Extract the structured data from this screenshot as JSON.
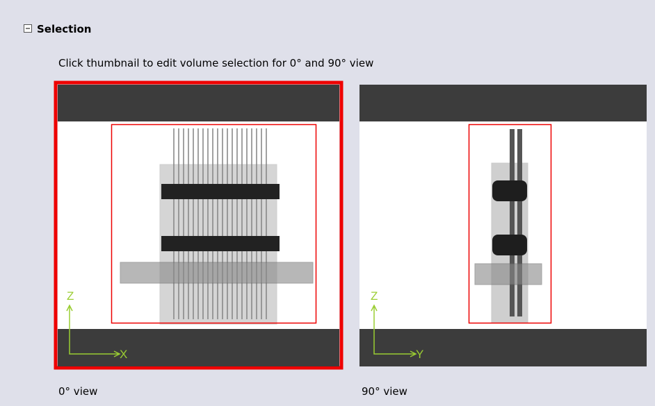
{
  "section": {
    "title": "Selection",
    "instruction": "Click thumbnail to edit volume selection for 0° and 90° view"
  },
  "thumbnails": [
    {
      "caption": "0° view",
      "vertical_axis": "Z",
      "horizontal_axis": "X"
    },
    {
      "caption": "90° view",
      "vertical_axis": "Z",
      "horizontal_axis": "Y"
    }
  ]
}
